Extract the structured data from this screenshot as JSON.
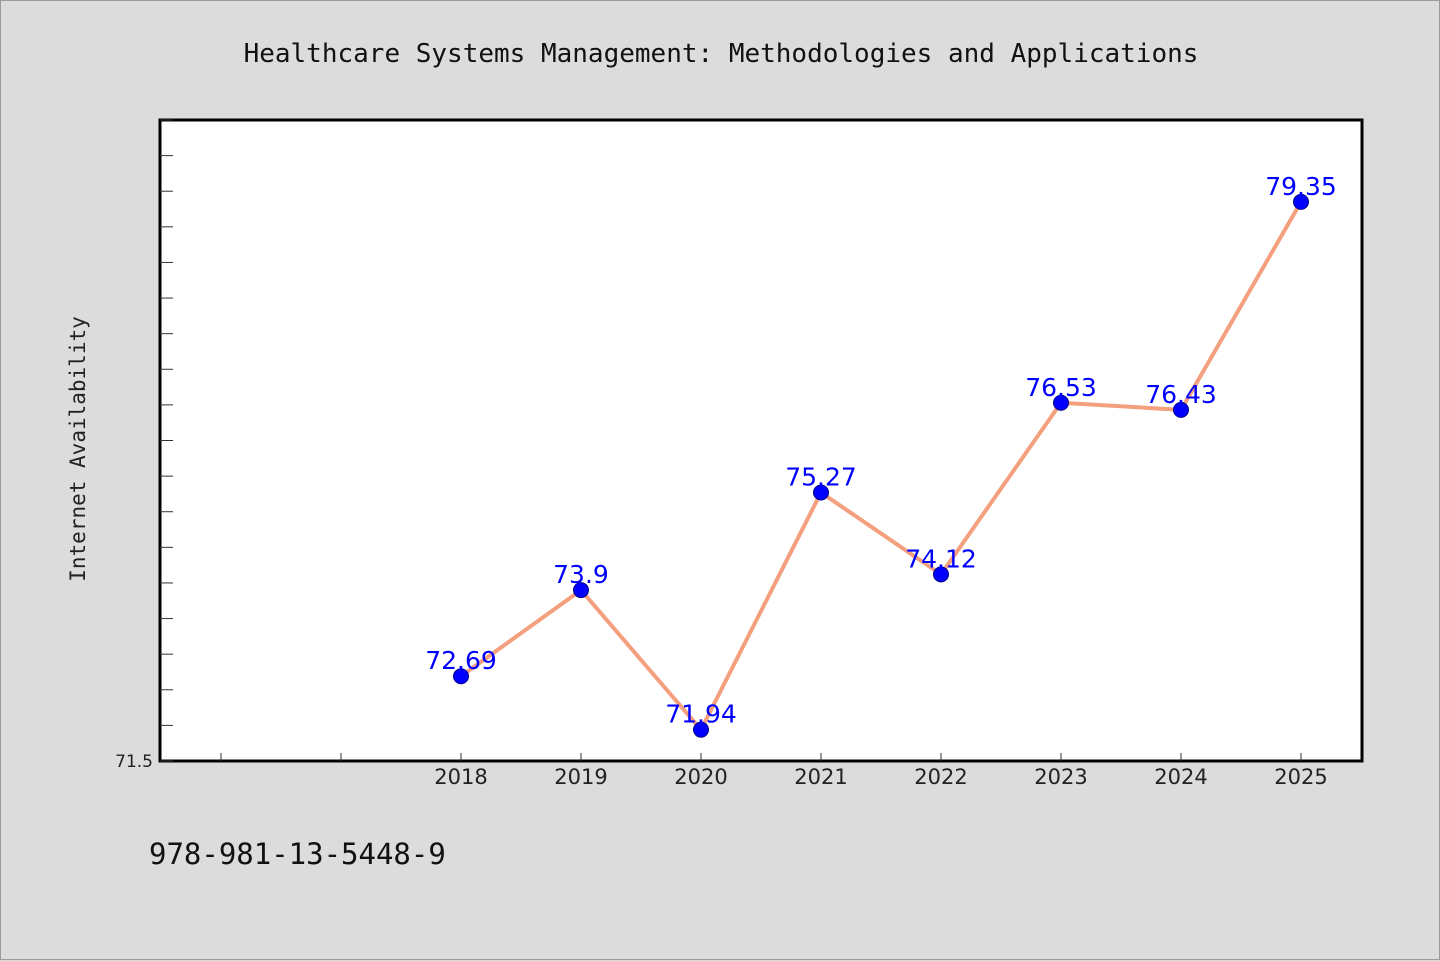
{
  "chart_data": {
    "type": "line",
    "title": "Healthcare Systems Management: Methodologies and Applications",
    "xlabel": "",
    "ylabel": "Internet Availability",
    "categories": [
      "2018",
      "2019",
      "2020",
      "2021",
      "2022",
      "2023",
      "2024",
      "2025"
    ],
    "series": [
      {
        "values": [
          72.69,
          73.9,
          71.94,
          75.27,
          74.12,
          76.53,
          76.43,
          79.35
        ],
        "labels": [
          "72.69",
          "73.9",
          "71.94",
          "75.27",
          "74.12",
          "76.53",
          "76.43",
          "79.35"
        ]
      }
    ],
    "yticks": [
      "71.5"
    ],
    "ylim": [
      71.5,
      80.5
    ],
    "grid": false,
    "legend": "none",
    "line_color": "#f4a07e",
    "marker_color": "#0000ff",
    "label_color": "#0000ff",
    "background_color": "#dcdcdc",
    "plot_background_color": "#ffffff"
  },
  "footer_text": "978-981-13-5448-9"
}
